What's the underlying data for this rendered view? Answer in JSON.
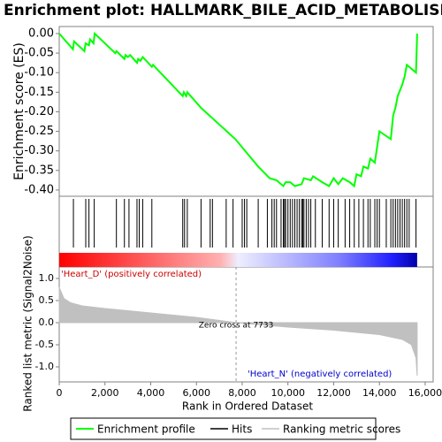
{
  "chart_data": [
    {
      "type": "line",
      "title": "Enrichment plot: HALLMARK_BILE_ACID_METABOLISM",
      "ylabel": "Enrichment score (ES)",
      "xlim": [
        0,
        16350
      ],
      "ylim": [
        -0.416,
        0.018
      ],
      "yticks": [
        {
          "value": 0,
          "label": "0.00"
        },
        -0.05,
        {
          "value": -0.1,
          "label": "-0.10"
        },
        -0.15,
        {
          "value": -0.2,
          "label": "-0.20"
        },
        -0.25,
        {
          "value": -0.3,
          "label": "-0.30"
        },
        -0.35,
        {
          "value": -0.4,
          "label": "-0.40"
        }
      ],
      "series": [
        {
          "name": "Enrichment profile",
          "color": "#00ff00",
          "x": [
            0,
            600,
            650,
            1100,
            1150,
            1300,
            1350,
            1500,
            1550,
            2450,
            2500,
            2850,
            2900,
            3000,
            3100,
            3400,
            3450,
            3550,
            3650,
            4050,
            4100,
            5400,
            5450,
            5550,
            5600,
            6200,
            7700,
            8700,
            9200,
            9500,
            9800,
            9900,
            10100,
            10300,
            10600,
            10700,
            11000,
            11100,
            11500,
            11800,
            12000,
            12200,
            12400,
            12700,
            12900,
            13000,
            13200,
            13300,
            13500,
            13600,
            13800,
            14000,
            14500,
            14600,
            14700,
            14800,
            15000,
            15100,
            15200,
            15600,
            15650
          ],
          "values": [
            0,
            -0.04,
            -0.02,
            -0.045,
            -0.025,
            -0.03,
            -0.015,
            -0.025,
            0,
            -0.05,
            -0.045,
            -0.065,
            -0.055,
            -0.06,
            -0.055,
            -0.075,
            -0.065,
            -0.07,
            -0.06,
            -0.085,
            -0.08,
            -0.16,
            -0.15,
            -0.16,
            -0.15,
            -0.19,
            -0.27,
            -0.34,
            -0.37,
            -0.375,
            -0.39,
            -0.38,
            -0.38,
            -0.39,
            -0.385,
            -0.37,
            -0.375,
            -0.365,
            -0.38,
            -0.39,
            -0.37,
            -0.385,
            -0.37,
            -0.38,
            -0.39,
            -0.36,
            -0.365,
            -0.34,
            -0.345,
            -0.32,
            -0.33,
            -0.25,
            -0.27,
            -0.21,
            -0.19,
            -0.16,
            -0.13,
            -0.11,
            -0.08,
            -0.1,
            0
          ]
        }
      ]
    },
    {
      "type": "hits",
      "xlim": [
        0,
        16350
      ],
      "series": [
        {
          "name": "Hits",
          "color": "#000000",
          "x": [
            620,
            1160,
            1300,
            1530,
            2500,
            2850,
            3050,
            3400,
            3500,
            3650,
            4050,
            5400,
            5480,
            5600,
            6200,
            6600,
            6700,
            7300,
            7600,
            8000,
            8100,
            8200,
            8700,
            9100,
            9300,
            9400,
            9500,
            9700,
            9800,
            9850,
            9900,
            10000,
            10100,
            10200,
            10300,
            10400,
            10500,
            10600,
            10650,
            10700,
            10800,
            10900,
            11000,
            11200,
            11500,
            11800,
            12000,
            12200,
            12500,
            12700,
            12900,
            13100,
            13300,
            13500,
            13600,
            13800,
            13900,
            14000,
            14300,
            14500,
            14600,
            14700,
            14800,
            14900,
            15000,
            15100,
            15200,
            15300,
            15600
          ]
        }
      ]
    },
    {
      "type": "area",
      "ylabel": "Ranked list metric (Signal2Noise)",
      "xlabel": "Rank in Ordered Dataset",
      "xlim": [
        0,
        16350
      ],
      "ylim": [
        -1.34,
        1.26
      ],
      "xticks": [
        0,
        {
          "value": 2000,
          "label": "2,000"
        },
        {
          "value": 4000,
          "label": "4,000"
        },
        {
          "value": 6000,
          "label": "6,000"
        },
        {
          "value": 8000,
          "label": "8,000"
        },
        {
          "value": 10000,
          "label": "10,000"
        },
        {
          "value": 12000,
          "label": "12,000"
        },
        {
          "value": 14000,
          "label": "14,000"
        },
        {
          "value": 16000,
          "label": "16,000"
        }
      ],
      "yticks": [
        {
          "value": 1,
          "label": "1.0"
        },
        0.5,
        {
          "value": 0,
          "label": "0.0"
        },
        -0.5,
        {
          "value": -1,
          "label": "-1.0"
        }
      ],
      "series": [
        {
          "name": "Ranking metric scores",
          "color": "#c0c0c0",
          "x": [
            0,
            200,
            500,
            1000,
            2000,
            4000,
            6000,
            7733,
            10000,
            12000,
            14000,
            15000,
            15400,
            15600,
            15650
          ],
          "values": [
            0.8,
            0.55,
            0.45,
            0.38,
            0.32,
            0.22,
            0.12,
            0,
            -0.1,
            -0.17,
            -0.27,
            -0.38,
            -0.5,
            -0.8,
            -1.2
          ]
        }
      ],
      "zero_cross": {
        "value": 7733,
        "label": "Zero cross at 7733"
      },
      "pos_label": "'Heart_D' (positively correlated)",
      "neg_label": "'Heart_N' (negatively correlated)"
    }
  ]
}
